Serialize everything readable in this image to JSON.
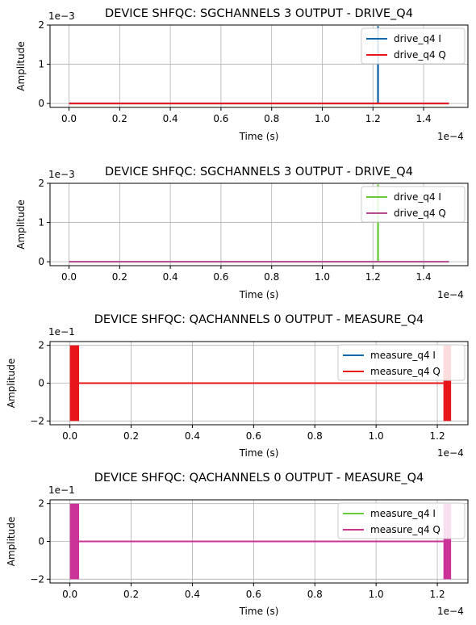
{
  "chart_data": [
    {
      "type": "line",
      "title": "DEVICE SHFQC: SGCHANNELS 3 OUTPUT - DRIVE_Q4",
      "xlabel": "Time (s)",
      "ylabel": "Amplitude",
      "x_multiplier": "1e−4",
      "y_multiplier": "1e−3",
      "x_ticks": [
        0.0,
        0.2,
        0.4,
        0.6,
        0.8,
        1.0,
        1.2,
        1.4
      ],
      "x_tick_labels": [
        "0.0",
        "0.2",
        "0.4",
        "0.6",
        "0.8",
        "1.0",
        "1.2",
        "1.4"
      ],
      "y_ticks": [
        0,
        1,
        2
      ],
      "y_tick_labels": [
        "0",
        "1",
        "2"
      ],
      "xlim": [
        -0.075,
        1.575
      ],
      "ylim": [
        -0.1,
        2.0
      ],
      "grid": true,
      "legend": "top-right",
      "series": [
        {
          "name": "drive_q4 I",
          "color": "#1167a8",
          "x": [
            0.0,
            1.2195,
            1.2195,
            1.2205,
            1.2205,
            1.5
          ],
          "y": [
            0,
            0,
            1.95,
            1.95,
            0,
            0
          ]
        },
        {
          "name": "drive_q4 Q",
          "color": "#e8161b",
          "x": [
            0.0,
            1.5
          ],
          "y": [
            0,
            0
          ]
        }
      ]
    },
    {
      "type": "line",
      "title": "DEVICE SHFQC: SGCHANNELS 3 OUTPUT - DRIVE_Q4",
      "xlabel": "Time (s)",
      "ylabel": "Amplitude",
      "x_multiplier": "1e−4",
      "y_multiplier": "1e−3",
      "x_ticks": [
        0.0,
        0.2,
        0.4,
        0.6,
        0.8,
        1.0,
        1.2,
        1.4
      ],
      "x_tick_labels": [
        "0.0",
        "0.2",
        "0.4",
        "0.6",
        "0.8",
        "1.0",
        "1.2",
        "1.4"
      ],
      "y_ticks": [
        0,
        1,
        2
      ],
      "y_tick_labels": [
        "0",
        "1",
        "2"
      ],
      "xlim": [
        -0.075,
        1.575
      ],
      "ylim": [
        -0.1,
        2.0
      ],
      "grid": true,
      "legend": "top-right",
      "series": [
        {
          "name": "drive_q4 I",
          "color": "#66cc33",
          "x": [
            0.0,
            1.2195,
            1.2195,
            1.2205,
            1.2205,
            1.5
          ],
          "y": [
            0,
            0,
            1.95,
            1.95,
            0,
            0
          ]
        },
        {
          "name": "drive_q4 Q",
          "color": "#b8489a",
          "x": [
            0.0,
            1.5
          ],
          "y": [
            0,
            0
          ]
        }
      ]
    },
    {
      "type": "line",
      "title": "DEVICE SHFQC: QACHANNELS 0 OUTPUT - MEASURE_Q4",
      "xlabel": "Time (s)",
      "ylabel": "Amplitude",
      "x_multiplier": "1e−4",
      "y_multiplier": "1e−1",
      "x_ticks": [
        0.0,
        0.2,
        0.4,
        0.6,
        0.8,
        1.0,
        1.2
      ],
      "x_tick_labels": [
        "0.0",
        "0.2",
        "0.4",
        "0.6",
        "0.8",
        "1.0",
        "1.2"
      ],
      "y_ticks": [
        -2,
        0,
        2
      ],
      "y_tick_labels": [
        "−2",
        "0",
        "2"
      ],
      "xlim": [
        -0.065,
        1.3
      ],
      "ylim": [
        -2.2,
        2.2
      ],
      "grid": true,
      "legend": "top-right",
      "bursts": [
        [
          0.0,
          0.03
        ],
        [
          1.22,
          1.245
        ]
      ],
      "series": [
        {
          "name": "measure_q4 I",
          "color": "#1167a8",
          "x": [
            0.03,
            1.22
          ],
          "y": [
            0,
            0
          ]
        },
        {
          "name": "measure_q4 Q",
          "color": "#e8161b",
          "x": [
            0.03,
            1.22
          ],
          "y": [
            0,
            0
          ]
        }
      ]
    },
    {
      "type": "line",
      "title": "DEVICE SHFQC: QACHANNELS 0 OUTPUT - MEASURE_Q4",
      "xlabel": "Time (s)",
      "ylabel": "Amplitude",
      "x_multiplier": "1e−4",
      "y_multiplier": "1e−1",
      "x_ticks": [
        0.0,
        0.2,
        0.4,
        0.6,
        0.8,
        1.0,
        1.2
      ],
      "x_tick_labels": [
        "0.0",
        "0.2",
        "0.4",
        "0.6",
        "0.8",
        "1.0",
        "1.2"
      ],
      "y_ticks": [
        -2,
        0,
        2
      ],
      "y_tick_labels": [
        "−2",
        "0",
        "2"
      ],
      "xlim": [
        -0.065,
        1.3
      ],
      "ylim": [
        -2.2,
        2.2
      ],
      "grid": true,
      "legend": "top-right",
      "bursts": [
        [
          0.0,
          0.03
        ],
        [
          1.22,
          1.245
        ]
      ],
      "series": [
        {
          "name": "measure_q4 I",
          "color": "#66cc33",
          "x": [
            0.03,
            1.22
          ],
          "y": [
            0,
            0
          ]
        },
        {
          "name": "measure_q4 Q",
          "color": "#cc3399",
          "x": [
            0.03,
            1.22
          ],
          "y": [
            0,
            0
          ]
        }
      ]
    }
  ]
}
